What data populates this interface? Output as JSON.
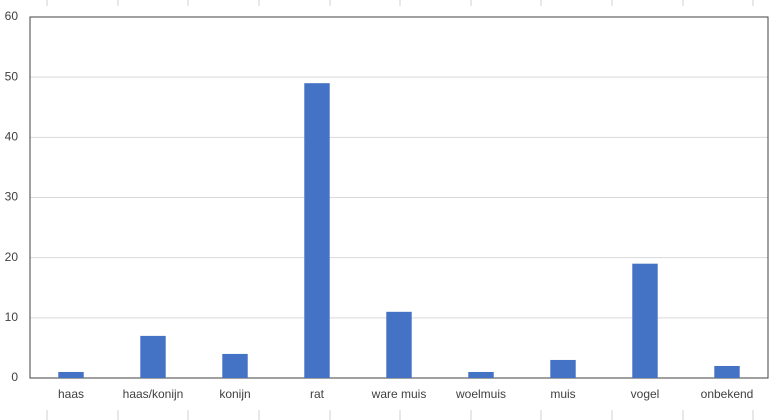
{
  "chart_data": {
    "type": "bar",
    "categories": [
      "haas",
      "haas/konijn",
      "konijn",
      "rat",
      "ware muis",
      "woelmuis",
      "muis",
      "vogel",
      "onbekend"
    ],
    "values": [
      1,
      7,
      4,
      49,
      11,
      1,
      3,
      19,
      2
    ],
    "color": "#4472c4",
    "ylim": [
      0,
      60
    ],
    "yticks": [
      0,
      10,
      20,
      30,
      40,
      50,
      60
    ],
    "grid": true
  }
}
